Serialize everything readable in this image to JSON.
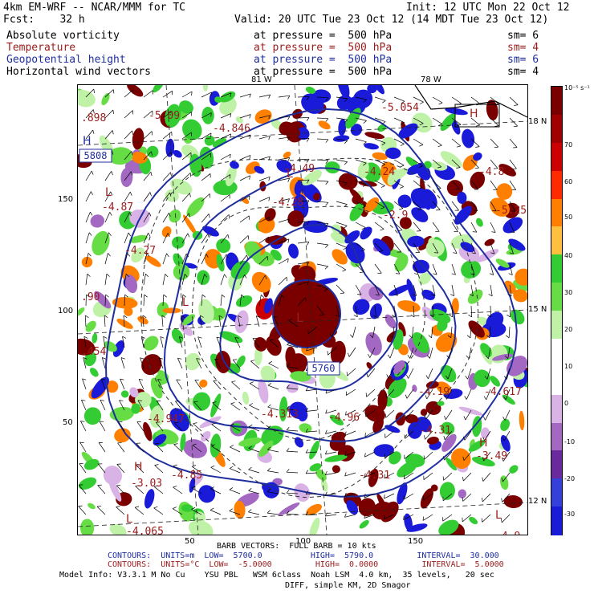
{
  "header": {
    "model_line": "4km EM-WRF -- NCAR/MMM for TC",
    "init_line": "Init: 12 UTC Mon 22 Oct 12",
    "fcst_line": "Fcst:    32 h",
    "valid_line": "Valid: 20 UTC Tue 23 Oct 12 (14 MDT Tue 23 Oct 12)"
  },
  "fields": [
    {
      "name": "Absolute vorticity",
      "level": "at pressure =  500 hPa",
      "sm": "sm= 6",
      "color": "#000000"
    },
    {
      "name": "Temperature",
      "level": "at pressure =  500 hPa",
      "sm": "sm= 4",
      "color": "#9b1c1c"
    },
    {
      "name": "Geopotential height",
      "level": "at pressure =  500 hPa",
      "sm": "sm= 6",
      "color": "#1f2e9e"
    },
    {
      "name": "Horizontal wind vectors",
      "level": "at pressure =  500 hPa",
      "sm": "sm= 4",
      "color": "#000000"
    }
  ],
  "axes": {
    "lon_top": [
      "81 W",
      "78 W"
    ],
    "lat_right": [
      "18 N",
      "15 N",
      "12 N"
    ],
    "x_ticks": [
      "50",
      "100",
      "150"
    ],
    "y_ticks": [
      "150",
      "100",
      "50"
    ]
  },
  "colorbar": {
    "unit": "10⁻⁵ s⁻¹",
    "labels": [
      "70",
      "60",
      "50",
      "40",
      "30",
      "20",
      "10",
      "0",
      "-10",
      "-20",
      "-30"
    ],
    "colors": [
      "#7a0000",
      "#a00000",
      "#cc0000",
      "#ff2a00",
      "#ff7f00",
      "#ffbf3f",
      "#33cc33",
      "#66dd44",
      "#bff2a6",
      "#ffffff",
      "#ffffff",
      "#d9b3e6",
      "#a368c2",
      "#6a2a9e",
      "#3340d9",
      "#1a1ad9"
    ]
  },
  "map_labels": {
    "center_height_box": "5760",
    "left_box": "5808",
    "center_L": "L",
    "high_markers": [
      "H",
      "H",
      "H",
      "H"
    ],
    "low_markers": [
      "L",
      "L",
      "L",
      "L",
      "L"
    ],
    "temp_values": [
      "-5.09",
      "-5.054",
      "-4.846",
      "-4.49",
      "-4.87",
      "-4.27",
      "-4.28",
      "-4.313",
      "-4.96",
      "-4.947",
      "-4.19",
      "-4.617",
      "-3.49",
      "-3.03",
      "-4.065",
      "-4.9",
      "-2.9",
      "-4.31",
      "-5.25",
      "-4.8",
      "-4.24",
      "-4.85",
      "-4.31"
    ],
    "edge_values": [
      ".898",
      ".454",
      ".90"
    ]
  },
  "footer": {
    "barb_line": "BARB VECTORS:  FULL BARB = 10 kts",
    "contours_height": "CONTOURS:  UNITS=m  LOW=  5700.0          HIGH=  5790.0         INTERVAL=  30.000",
    "contours_temp": "CONTOURS:  UNITS=°C  LOW=  -5.0000         HIGH=  0.0000         INTERVAL=  5.0000",
    "model_info": "Model Info: V3.3.1 M No Cu    YSU PBL   WSM 6class  Noah LSM  4.0 km,  35 levels,   20 sec",
    "model_info2": "DIFF, simple KM, 2D Smagor"
  }
}
